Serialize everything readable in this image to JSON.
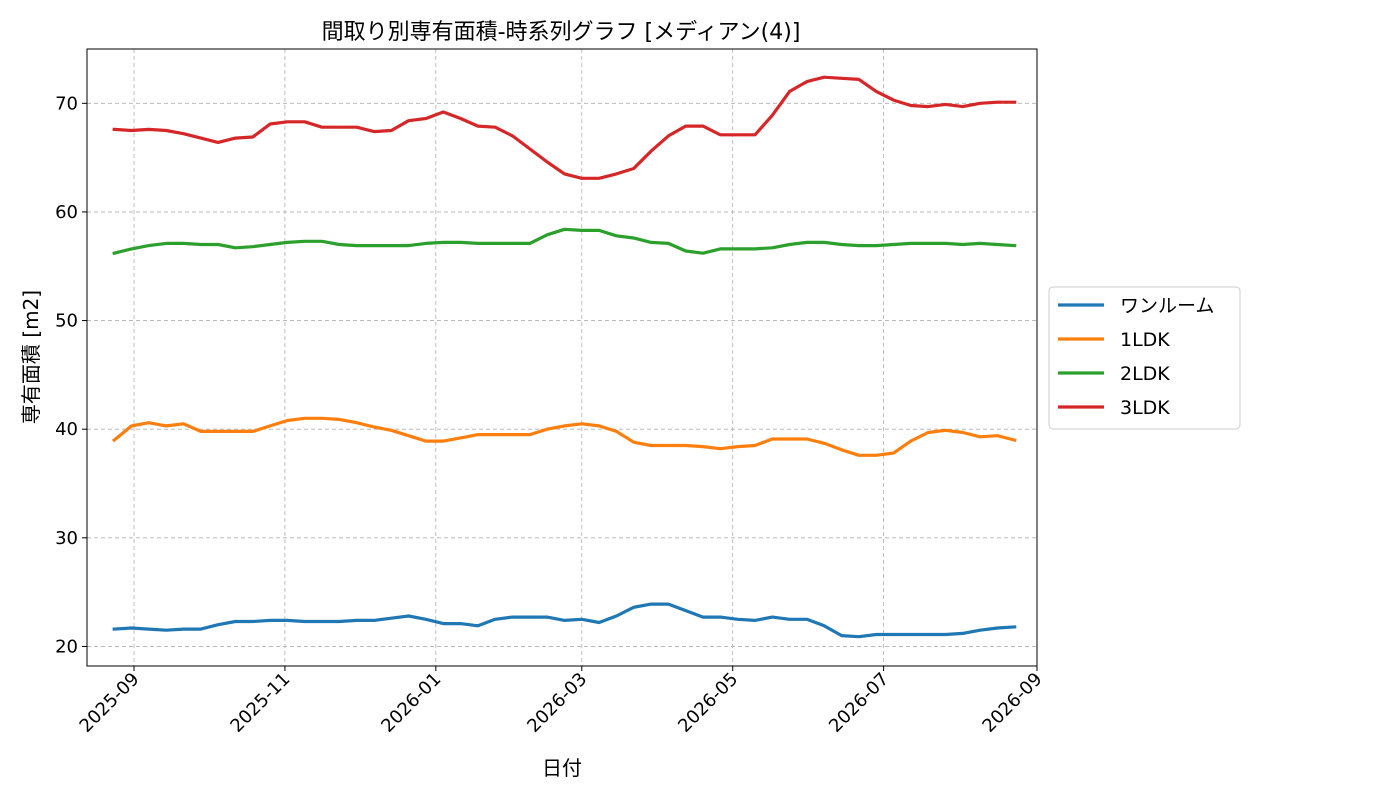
{
  "chart_data": {
    "type": "line",
    "title": "間取り別専有面積-時系列グラフ [メディアン(4)]",
    "xlabel": "日付",
    "ylabel": "専有面積 [m2]",
    "grid": true,
    "legend_placement": "center-right-outside",
    "xlim": [
      "2025-08-13",
      "2026-09-01"
    ],
    "ylim": [
      18.2,
      75
    ],
    "x_ticks": [
      "2025-09",
      "2025-11",
      "2026-01",
      "2026-03",
      "2026-05",
      "2026-07",
      "2026-09"
    ],
    "y_ticks": [
      20,
      30,
      40,
      50,
      60,
      70
    ],
    "x": [
      "2025-08-24",
      "2025-08-31",
      "2025-09-07",
      "2025-09-14",
      "2025-09-21",
      "2025-09-28",
      "2025-10-05",
      "2025-10-12",
      "2025-10-19",
      "2025-10-26",
      "2025-11-02",
      "2025-11-09",
      "2025-11-16",
      "2025-11-23",
      "2025-11-30",
      "2025-12-07",
      "2025-12-14",
      "2025-12-21",
      "2025-12-28",
      "2026-01-04",
      "2026-01-11",
      "2026-01-18",
      "2026-01-25",
      "2026-02-01",
      "2026-02-08",
      "2026-02-15",
      "2026-02-22",
      "2026-03-01",
      "2026-03-08",
      "2026-03-15",
      "2026-03-22",
      "2026-03-29",
      "2026-04-05",
      "2026-04-12",
      "2026-04-19",
      "2026-04-26",
      "2026-05-03",
      "2026-05-10",
      "2026-05-17",
      "2026-05-24",
      "2026-05-31",
      "2026-06-07",
      "2026-06-14",
      "2026-06-21",
      "2026-06-28",
      "2026-07-05",
      "2026-07-12",
      "2026-07-19",
      "2026-07-26",
      "2026-08-02",
      "2026-08-09",
      "2026-08-16",
      "2026-08-23"
    ],
    "series": [
      {
        "name": "ワンルーム",
        "color": "#1f77b4",
        "values": [
          21.6,
          21.7,
          21.6,
          21.5,
          21.6,
          21.6,
          22.0,
          22.3,
          22.3,
          22.4,
          22.4,
          22.3,
          22.3,
          22.3,
          22.4,
          22.4,
          22.6,
          22.8,
          22.5,
          22.1,
          22.1,
          21.9,
          22.5,
          22.7,
          22.7,
          22.7,
          22.4,
          22.5,
          22.2,
          22.8,
          23.6,
          23.9,
          23.9,
          23.3,
          22.7,
          22.7,
          22.5,
          22.4,
          22.7,
          22.5,
          22.5,
          21.9,
          21.0,
          20.9,
          21.1,
          21.1,
          21.1,
          21.1,
          21.1,
          21.2,
          21.5,
          21.7,
          21.8
        ]
      },
      {
        "name": "1LDK",
        "color": "#ff7f0e",
        "values": [
          39.0,
          40.3,
          40.6,
          40.3,
          40.5,
          39.8,
          39.8,
          39.8,
          39.8,
          40.3,
          40.8,
          41.0,
          41.0,
          40.9,
          40.6,
          40.2,
          39.9,
          39.4,
          38.9,
          38.9,
          39.2,
          39.5,
          39.5,
          39.5,
          39.5,
          40.0,
          40.3,
          40.5,
          40.3,
          39.8,
          38.8,
          38.5,
          38.5,
          38.5,
          38.4,
          38.2,
          38.4,
          38.5,
          39.1,
          39.1,
          39.1,
          38.7,
          38.1,
          37.6,
          37.6,
          37.8,
          38.9,
          39.7,
          39.9,
          39.7,
          39.3,
          39.4,
          39.0
        ]
      },
      {
        "name": "2LDK",
        "color": "#2ca02c",
        "values": [
          56.2,
          56.6,
          56.9,
          57.1,
          57.1,
          57.0,
          57.0,
          56.7,
          56.8,
          57.0,
          57.2,
          57.3,
          57.3,
          57.0,
          56.9,
          56.9,
          56.9,
          56.9,
          57.1,
          57.2,
          57.2,
          57.1,
          57.1,
          57.1,
          57.1,
          57.9,
          58.4,
          58.3,
          58.3,
          57.8,
          57.6,
          57.2,
          57.1,
          56.4,
          56.2,
          56.6,
          56.6,
          56.6,
          56.7,
          57.0,
          57.2,
          57.2,
          57.0,
          56.9,
          56.9,
          57.0,
          57.1,
          57.1,
          57.1,
          57.0,
          57.1,
          57.0,
          56.9
        ]
      },
      {
        "name": "3LDK",
        "color": "#d62728",
        "values": [
          67.6,
          67.5,
          67.6,
          67.5,
          67.2,
          66.8,
          66.4,
          66.8,
          66.9,
          68.1,
          68.3,
          68.3,
          67.8,
          67.8,
          67.8,
          67.4,
          67.5,
          68.4,
          68.6,
          69.2,
          68.6,
          67.9,
          67.8,
          67.0,
          65.8,
          64.6,
          63.5,
          63.1,
          63.1,
          63.5,
          64.0,
          65.6,
          67.0,
          67.9,
          67.9,
          67.1,
          67.1,
          67.1,
          68.9,
          71.1,
          72.0,
          72.4,
          72.3,
          72.2,
          71.1,
          70.3,
          69.8,
          69.7,
          69.9,
          69.7,
          70.0,
          70.1,
          70.1
        ]
      }
    ]
  }
}
